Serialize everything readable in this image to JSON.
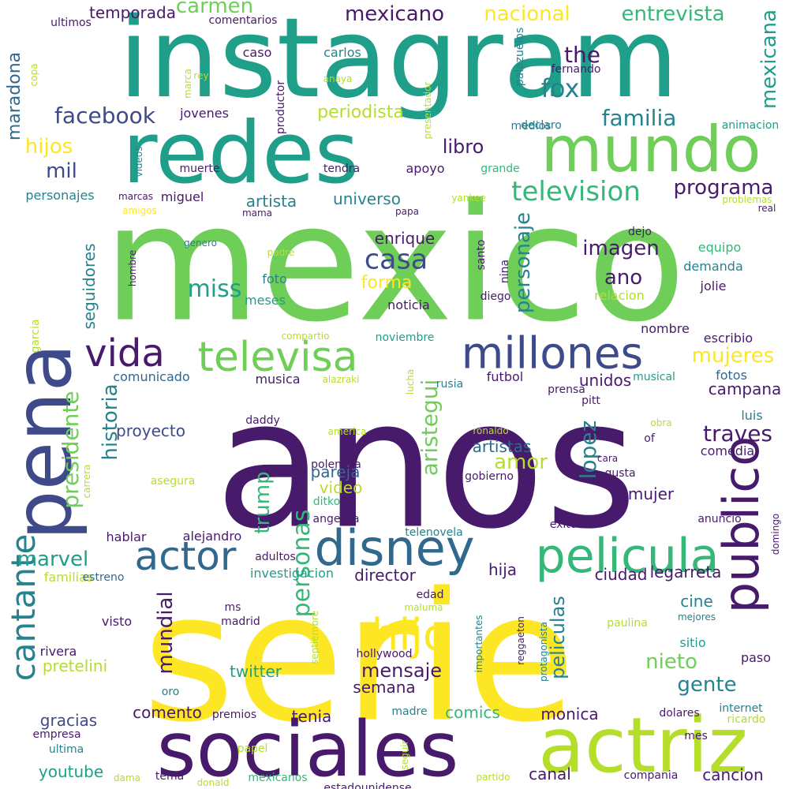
{
  "palette": {
    "dark_purple": "#481a6c",
    "indigo": "#3e4a89",
    "steel_blue": "#31688e",
    "teal": "#26828e",
    "sea_green": "#1f9e89",
    "green": "#35b779",
    "lime": "#6ece58",
    "yellow_green": "#b5de2b",
    "yellow": "#fde725",
    "background": "#ffffff"
  },
  "words": [
    {
      "t": "instagram",
      "c": "sea_green"
    },
    {
      "t": "mexico",
      "c": "lime"
    },
    {
      "t": "anos",
      "c": "dark_purple"
    },
    {
      "t": "serie",
      "c": "yellow"
    },
    {
      "t": "redes",
      "c": "sea_green"
    },
    {
      "t": "sociales",
      "c": "dark_purple"
    },
    {
      "t": "actriz",
      "c": "yellow_green"
    },
    {
      "t": "mundo",
      "c": "lime"
    },
    {
      "t": "pena",
      "c": "indigo"
    },
    {
      "t": "disney",
      "c": "steel_blue"
    },
    {
      "t": "pelicula",
      "c": "green"
    },
    {
      "t": "publico",
      "c": "dark_purple"
    },
    {
      "t": "millones",
      "c": "indigo"
    },
    {
      "t": "televisa",
      "c": "lime"
    },
    {
      "t": "vida",
      "c": "dark_purple"
    },
    {
      "t": "actor",
      "c": "steel_blue"
    },
    {
      "t": "cantante",
      "c": "teal"
    },
    {
      "t": "hijo",
      "c": "yellow"
    },
    {
      "t": "casa",
      "c": "indigo"
    },
    {
      "t": "television",
      "c": "green"
    },
    {
      "t": "facebook",
      "c": "indigo"
    },
    {
      "t": "mexicano",
      "c": "dark_purple"
    },
    {
      "t": "nacional",
      "c": "yellow"
    },
    {
      "t": "entrevista",
      "c": "green"
    },
    {
      "t": "carmen",
      "c": "lime"
    },
    {
      "t": "temporada",
      "c": "dark_purple"
    },
    {
      "t": "mexicana",
      "c": "sea_green"
    },
    {
      "t": "maradona",
      "c": "steel_blue"
    },
    {
      "t": "hijos",
      "c": "yellow"
    },
    {
      "t": "mil",
      "c": "indigo"
    },
    {
      "t": "fox",
      "c": "teal"
    },
    {
      "t": "the",
      "c": "dark_purple"
    },
    {
      "t": "familia",
      "c": "teal"
    },
    {
      "t": "periodista",
      "c": "yellow_green"
    },
    {
      "t": "libro",
      "c": "dark_purple"
    },
    {
      "t": "programa",
      "c": "dark_purple"
    },
    {
      "t": "miss",
      "c": "sea_green"
    },
    {
      "t": "imagen",
      "c": "dark_purple"
    },
    {
      "t": "ano",
      "c": "dark_purple"
    },
    {
      "t": "forma",
      "c": "yellow"
    },
    {
      "t": "personaje",
      "c": "teal"
    },
    {
      "t": "universo",
      "c": "teal"
    },
    {
      "t": "artista",
      "c": "teal"
    },
    {
      "t": "enrique",
      "c": "dark_purple"
    },
    {
      "t": "seguidores",
      "c": "teal"
    },
    {
      "t": "mujeres",
      "c": "yellow"
    },
    {
      "t": "aristegui",
      "c": "lime"
    },
    {
      "t": "historia",
      "c": "teal"
    },
    {
      "t": "presidente",
      "c": "lime"
    },
    {
      "t": "marvel",
      "c": "sea_green"
    },
    {
      "t": "trump",
      "c": "green"
    },
    {
      "t": "lopez",
      "c": "teal"
    },
    {
      "t": "traves",
      "c": "dark_purple"
    },
    {
      "t": "amor",
      "c": "yellow_green"
    },
    {
      "t": "personas",
      "c": "green"
    },
    {
      "t": "mensaje",
      "c": "dark_purple"
    },
    {
      "t": "mundial",
      "c": "dark_purple"
    },
    {
      "t": "peliculas",
      "c": "teal"
    },
    {
      "t": "nieto",
      "c": "lime"
    },
    {
      "t": "gente",
      "c": "teal"
    },
    {
      "t": "twitter",
      "c": "sea_green"
    },
    {
      "t": "youtube",
      "c": "sea_green"
    },
    {
      "t": "gracias",
      "c": "indigo"
    },
    {
      "t": "comento",
      "c": "dark_purple"
    },
    {
      "t": "comics",
      "c": "green"
    },
    {
      "t": "canal",
      "c": "dark_purple"
    },
    {
      "t": "cancion",
      "c": "dark_purple"
    },
    {
      "t": "campana",
      "c": "dark_purple"
    },
    {
      "t": "unidos",
      "c": "dark_purple"
    },
    {
      "t": "proyecto",
      "c": "indigo"
    },
    {
      "t": "pareja",
      "c": "steel_blue"
    },
    {
      "t": "artistas",
      "c": "steel_blue"
    },
    {
      "t": "video",
      "c": "yellow_green"
    },
    {
      "t": "mujer",
      "c": "dark_purple"
    },
    {
      "t": "cine",
      "c": "teal"
    },
    {
      "t": "ciudad",
      "c": "dark_purple"
    },
    {
      "t": "director",
      "c": "dark_purple"
    },
    {
      "t": "hija",
      "c": "dark_purple"
    },
    {
      "t": "legarreta",
      "c": "dark_purple"
    },
    {
      "t": "semana",
      "c": "dark_purple"
    },
    {
      "t": "tenia",
      "c": "dark_purple"
    },
    {
      "t": "monica",
      "c": "dark_purple"
    },
    {
      "t": "pretelini",
      "c": "yellow_green"
    },
    {
      "t": "rivera",
      "c": "dark_purple"
    },
    {
      "t": "visto",
      "c": "dark_purple"
    },
    {
      "t": "familias",
      "c": "yellow_green"
    },
    {
      "t": "hablar",
      "c": "dark_purple"
    },
    {
      "t": "alejandro",
      "c": "dark_purple"
    },
    {
      "t": "investigacion",
      "c": "sea_green"
    },
    {
      "t": "foto",
      "c": "teal"
    },
    {
      "t": "meses",
      "c": "sea_green"
    },
    {
      "t": "noticia",
      "c": "dark_purple"
    },
    {
      "t": "relacion",
      "c": "yellow_green"
    },
    {
      "t": "jolie",
      "c": "dark_purple"
    },
    {
      "t": "demanda",
      "c": "teal"
    },
    {
      "t": "equipo",
      "c": "green"
    },
    {
      "t": "escribio",
      "c": "dark_purple"
    },
    {
      "t": "nombre",
      "c": "dark_purple"
    },
    {
      "t": "fotos",
      "c": "steel_blue"
    },
    {
      "t": "luis",
      "c": "teal"
    },
    {
      "t": "comedia",
      "c": "dark_purple"
    },
    {
      "t": "sitio",
      "c": "sea_green"
    },
    {
      "t": "paso",
      "c": "dark_purple"
    },
    {
      "t": "futbol",
      "c": "dark_purple"
    },
    {
      "t": "musica",
      "c": "dark_purple"
    },
    {
      "t": "comunicado",
      "c": "steel_blue"
    },
    {
      "t": "apoyo",
      "c": "dark_purple"
    },
    {
      "t": "miguel",
      "c": "dark_purple"
    },
    {
      "t": "personajes",
      "c": "teal"
    },
    {
      "t": "jovenes",
      "c": "dark_purple"
    },
    {
      "t": "caso",
      "c": "dark_purple"
    },
    {
      "t": "carlos",
      "c": "teal"
    },
    {
      "t": "comentarios",
      "c": "dark_purple"
    },
    {
      "t": "ultimos",
      "c": "dark_purple"
    },
    {
      "t": "muerte",
      "c": "dark_purple"
    },
    {
      "t": "tendra",
      "c": "dark_purple"
    },
    {
      "t": "grande",
      "c": "green"
    },
    {
      "t": "yankee",
      "c": "yellow_green"
    },
    {
      "t": "papa",
      "c": "dark_purple"
    },
    {
      "t": "mama",
      "c": "dark_purple"
    },
    {
      "t": "amigos",
      "c": "yellow"
    },
    {
      "t": "marcas",
      "c": "dark_purple"
    },
    {
      "t": "genero",
      "c": "teal"
    },
    {
      "t": "padre",
      "c": "yellow_green"
    },
    {
      "t": "hombre",
      "c": "dark_purple"
    },
    {
      "t": "dejo",
      "c": "dark_purple"
    },
    {
      "t": "santo",
      "c": "dark_purple"
    },
    {
      "t": "nina",
      "c": "dark_purple"
    },
    {
      "t": "diego",
      "c": "dark_purple"
    },
    {
      "t": "compartio",
      "c": "yellow_green"
    },
    {
      "t": "noviembre",
      "c": "sea_green"
    },
    {
      "t": "alazraki",
      "c": "yellow_green"
    },
    {
      "t": "lucha",
      "c": "yellow_green"
    },
    {
      "t": "rusia",
      "c": "teal"
    },
    {
      "t": "prensa",
      "c": "dark_purple"
    },
    {
      "t": "pitt",
      "c": "dark_purple"
    },
    {
      "t": "musical",
      "c": "sea_green"
    },
    {
      "t": "daddy",
      "c": "dark_purple"
    },
    {
      "t": "america",
      "c": "yellow_green"
    },
    {
      "t": "ronaldo",
      "c": "yellow_green"
    },
    {
      "t": "polemica",
      "c": "dark_purple"
    },
    {
      "t": "gobierno",
      "c": "dark_purple"
    },
    {
      "t": "asegura",
      "c": "yellow_green"
    },
    {
      "t": "carrera",
      "c": "yellow_green"
    },
    {
      "t": "ditko",
      "c": "green"
    },
    {
      "t": "angelica",
      "c": "dark_purple"
    },
    {
      "t": "obra",
      "c": "yellow_green"
    },
    {
      "t": "of",
      "c": "dark_purple"
    },
    {
      "t": "cara",
      "c": "dark_purple"
    },
    {
      "t": "gusta",
      "c": "dark_purple"
    },
    {
      "t": "anuncio",
      "c": "dark_purple"
    },
    {
      "t": "domingo",
      "c": "dark_purple"
    },
    {
      "t": "exito",
      "c": "dark_purple"
    },
    {
      "t": "telenovela",
      "c": "teal"
    },
    {
      "t": "adultos",
      "c": "dark_purple"
    },
    {
      "t": "estreno",
      "c": "steel_blue"
    },
    {
      "t": "edad",
      "c": "dark_purple"
    },
    {
      "t": "maluma",
      "c": "yellow_green"
    },
    {
      "t": "ms",
      "c": "dark_purple"
    },
    {
      "t": "madrid",
      "c": "dark_purple"
    },
    {
      "t": "mejores",
      "c": "teal"
    },
    {
      "t": "paulina",
      "c": "yellow_green"
    },
    {
      "t": "septiembre",
      "c": "yellow_green"
    },
    {
      "t": "importantes",
      "c": "teal"
    },
    {
      "t": "reggaeton",
      "c": "dark_purple"
    },
    {
      "t": "protagonista",
      "c": "teal"
    },
    {
      "t": "hollywood",
      "c": "dark_purple"
    },
    {
      "t": "oro",
      "c": "teal"
    },
    {
      "t": "premios",
      "c": "dark_purple"
    },
    {
      "t": "empresa",
      "c": "dark_purple"
    },
    {
      "t": "ultima",
      "c": "teal"
    },
    {
      "t": "madre",
      "c": "teal"
    },
    {
      "t": "papel",
      "c": "yellow_green"
    },
    {
      "t": "seguir",
      "c": "yellow_green"
    },
    {
      "t": "dama",
      "c": "yellow_green"
    },
    {
      "t": "tema",
      "c": "dark_purple"
    },
    {
      "t": "donald",
      "c": "yellow_green"
    },
    {
      "t": "mexicanos",
      "c": "green"
    },
    {
      "t": "estadounidense",
      "c": "dark_purple"
    },
    {
      "t": "partido",
      "c": "yellow_green"
    },
    {
      "t": "compania",
      "c": "dark_purple"
    },
    {
      "t": "internet",
      "c": "teal"
    },
    {
      "t": "dolares",
      "c": "dark_purple"
    },
    {
      "t": "ricardo",
      "c": "yellow_green"
    },
    {
      "t": "mes",
      "c": "dark_purple"
    },
    {
      "t": "palazuelos",
      "c": "teal"
    },
    {
      "t": "fernando",
      "c": "dark_purple"
    },
    {
      "t": "medios",
      "c": "teal"
    },
    {
      "t": "declaro",
      "c": "teal"
    },
    {
      "t": "presentador",
      "c": "yellow_green"
    },
    {
      "t": "productor",
      "c": "dark_purple"
    },
    {
      "t": "anaya",
      "c": "yellow_green"
    },
    {
      "t": "rey",
      "c": "yellow_green"
    },
    {
      "t": "marca",
      "c": "yellow_green"
    },
    {
      "t": "copa",
      "c": "yellow_green"
    },
    {
      "t": "videos",
      "c": "teal"
    },
    {
      "t": "animacion",
      "c": "sea_green"
    },
    {
      "t": "problemas",
      "c": "yellow_green"
    },
    {
      "t": "real",
      "c": "dark_purple"
    },
    {
      "t": "garcia",
      "c": "yellow_green"
    }
  ]
}
